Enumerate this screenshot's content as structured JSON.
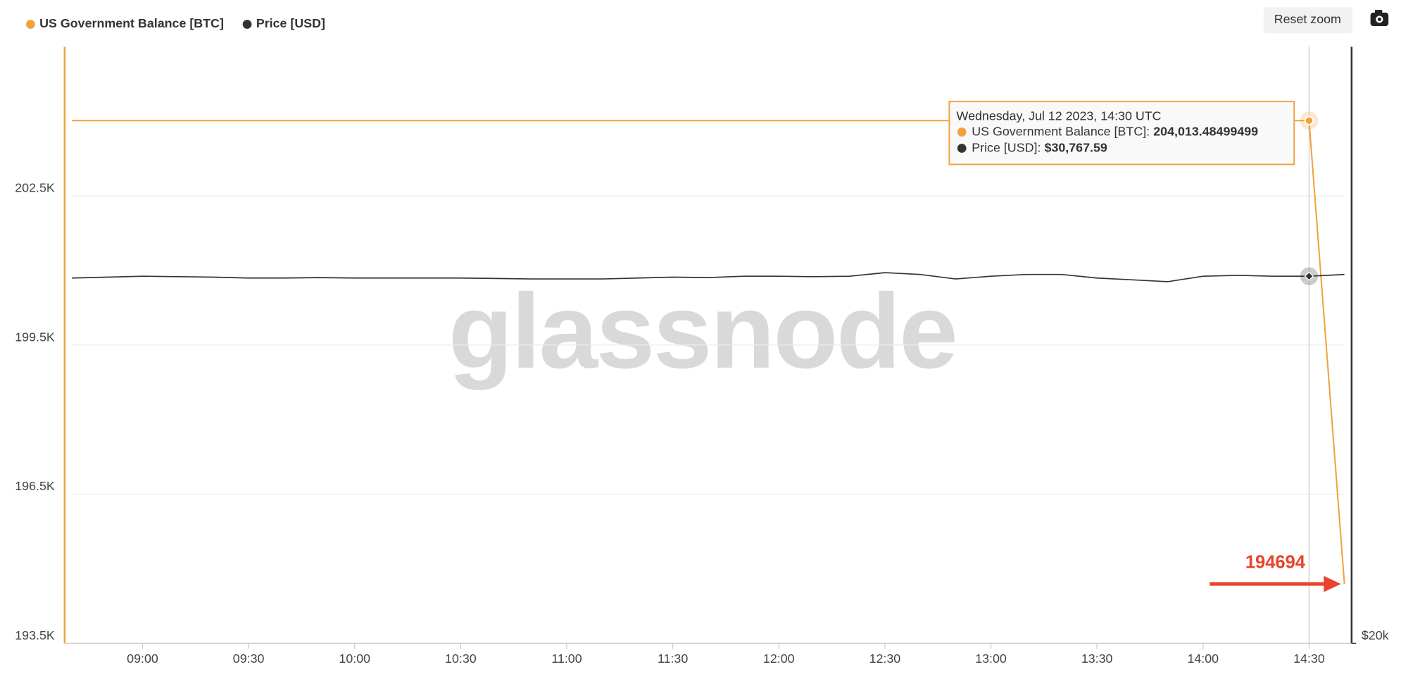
{
  "chart_data": {
    "type": "line",
    "x": [
      "08:40",
      "08:50",
      "09:00",
      "09:10",
      "09:20",
      "09:30",
      "09:40",
      "09:50",
      "10:00",
      "10:10",
      "10:20",
      "10:30",
      "10:40",
      "10:50",
      "11:00",
      "11:10",
      "11:20",
      "11:30",
      "11:40",
      "11:50",
      "12:00",
      "12:10",
      "12:20",
      "12:30",
      "12:40",
      "12:50",
      "13:00",
      "13:10",
      "13:20",
      "13:30",
      "13:40",
      "13:50",
      "14:00",
      "14:10",
      "14:20",
      "14:30",
      "14:40"
    ],
    "xlim": [
      "08:40",
      "14:40"
    ],
    "xticks": [
      "09:00",
      "09:30",
      "10:00",
      "10:30",
      "11:00",
      "11:30",
      "12:00",
      "12:30",
      "13:00",
      "13:30",
      "14:00",
      "14:30"
    ],
    "series": [
      {
        "name": "US Government Balance [BTC]",
        "color": "#f0a23c",
        "axis": "y",
        "values": [
          204013.48499499,
          204013.48499499,
          204013.48499499,
          204013.48499499,
          204013.48499499,
          204013.48499499,
          204013.48499499,
          204013.48499499,
          204013.48499499,
          204013.48499499,
          204013.48499499,
          204013.48499499,
          204013.48499499,
          204013.48499499,
          204013.48499499,
          204013.48499499,
          204013.48499499,
          204013.48499499,
          204013.48499499,
          204013.48499499,
          204013.48499499,
          204013.48499499,
          204013.48499499,
          204013.48499499,
          204013.48499499,
          204013.48499499,
          204013.48499499,
          204013.48499499,
          204013.48499499,
          204013.48499499,
          204013.48499499,
          204013.48499499,
          204013.48499499,
          204013.48499499,
          204013.48499499,
          204013.48499499,
          194694
        ]
      },
      {
        "name": "Price [USD]",
        "color": "#333333",
        "axis": "y2",
        "values": [
          30715,
          30741,
          30768,
          30755,
          30741,
          30715,
          30715,
          30728,
          30715,
          30715,
          30715,
          30715,
          30702,
          30688,
          30688,
          30688,
          30715,
          30741,
          30728,
          30768,
          30768,
          30755,
          30768,
          30873,
          30820,
          30688,
          30768,
          30820,
          30820,
          30715,
          30662,
          30609,
          30768,
          30794,
          30768,
          30767.59,
          30820
        ]
      }
    ],
    "ylim": [
      193500,
      205500
    ],
    "yticks": [
      {
        "value": 193500,
        "label": "193.5K"
      },
      {
        "value": 196500,
        "label": "196.5K"
      },
      {
        "value": 199500,
        "label": "199.5K"
      },
      {
        "value": 202500,
        "label": "202.5K"
      }
    ],
    "y2lim": [
      20000,
      37500
    ],
    "y2ticks": [
      {
        "value": 20000,
        "label": "$20k"
      }
    ],
    "grid": true,
    "legend": "top-left",
    "watermark": "glassnode",
    "annotation": {
      "text": "194694",
      "color": "#e8432c"
    },
    "tooltip": {
      "x": "14:30",
      "title": "Wednesday, Jul 12 2023, 14:30 UTC",
      "separator": ":",
      "value_labels": [
        "204,013.48499499",
        "$30,767.59"
      ]
    }
  },
  "ui": {
    "reset_zoom": "Reset zoom"
  }
}
